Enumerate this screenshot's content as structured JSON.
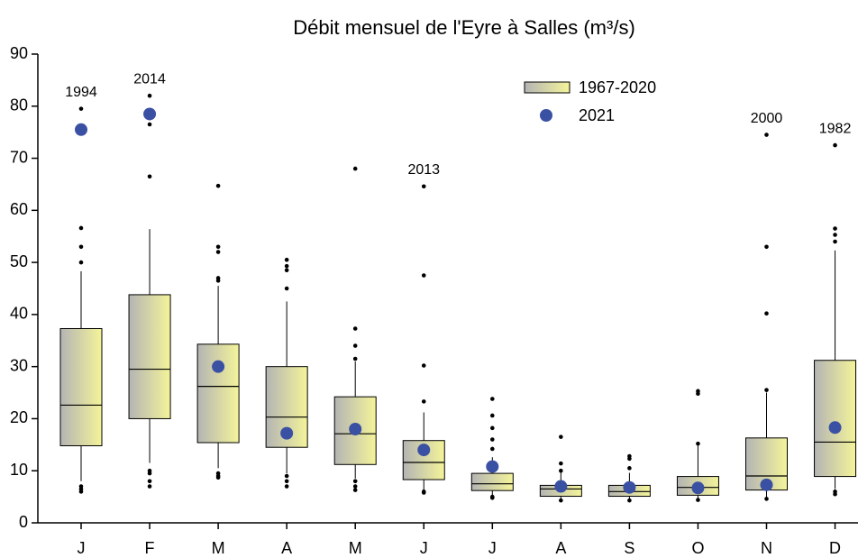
{
  "chart_data": {
    "type": "box",
    "title": "Débit mensuel de l'Eyre à Salles (m³/s)",
    "categories": [
      "J",
      "F",
      "M",
      "A",
      "M",
      "J",
      "J",
      "A",
      "S",
      "O",
      "N",
      "D"
    ],
    "ylim": [
      0,
      90
    ],
    "yticks": [
      0,
      10,
      20,
      30,
      40,
      50,
      60,
      70,
      80,
      90
    ],
    "series": [
      {
        "name": "1967-2020",
        "color": "#f4f49a",
        "color_dark": "#b4b4b4",
        "boxes": [
          {
            "whisker_low": 8,
            "q1": 14.8,
            "median": 22.6,
            "q3": 37.3,
            "whisker_high": 48.3,
            "outliers": [
              6,
              6.5,
              7,
              50,
              53,
              56.6,
              79.5
            ]
          },
          {
            "whisker_low": 11.5,
            "q1": 20,
            "median": 29.5,
            "q3": 43.8,
            "whisker_high": 56.4,
            "outliers": [
              7,
              8,
              9.5,
              10,
              66.5,
              76.5,
              82
            ]
          },
          {
            "whisker_low": 10.5,
            "q1": 15.4,
            "median": 26.2,
            "q3": 34.3,
            "whisker_high": 45.5,
            "outliers": [
              8.7,
              9,
              9.5,
              46.5,
              47,
              52,
              53,
              64.7
            ]
          },
          {
            "whisker_low": 9.5,
            "q1": 14.5,
            "median": 20.3,
            "q3": 30,
            "whisker_high": 42.5,
            "outliers": [
              7,
              8,
              9,
              45,
              48.5,
              49.3,
              50.5
            ]
          },
          {
            "whisker_low": 8.5,
            "q1": 11.2,
            "median": 17.1,
            "q3": 24.2,
            "whisker_high": 31,
            "outliers": [
              6.3,
              7,
              8,
              31.5,
              34,
              37.3,
              68
            ]
          },
          {
            "whisker_low": 6.2,
            "q1": 8.3,
            "median": 11.6,
            "q3": 15.8,
            "whisker_high": 21.2,
            "outliers": [
              5.8,
              6,
              23.3,
              30.2,
              47.5,
              64.6
            ]
          },
          {
            "whisker_low": 5.3,
            "q1": 6.2,
            "median": 7.5,
            "q3": 9.5,
            "whisker_high": 12.6,
            "outliers": [
              4.8,
              5,
              14.2,
              16,
              18.2,
              20.6,
              23.8
            ]
          },
          {
            "whisker_low": 4.5,
            "q1": 5.1,
            "median": 6.5,
            "q3": 7.2,
            "whisker_high": 9.7,
            "outliers": [
              4.3,
              10,
              11.4,
              16.5
            ]
          },
          {
            "whisker_low": 4.5,
            "q1": 5.1,
            "median": 6,
            "q3": 7.2,
            "whisker_high": 9.6,
            "outliers": [
              4.3,
              10.5,
              12.3,
              12.8
            ]
          },
          {
            "whisker_low": 4.6,
            "q1": 5.3,
            "median": 6.8,
            "q3": 8.9,
            "whisker_high": 14.8,
            "outliers": [
              4.4,
              15.2,
              24.8,
              25.3
            ]
          },
          {
            "whisker_low": 4.8,
            "q1": 6.3,
            "median": 9,
            "q3": 16.3,
            "whisker_high": 25,
            "outliers": [
              4.6,
              25.5,
              40.2,
              53,
              74.5
            ]
          },
          {
            "whisker_low": 6.5,
            "q1": 8.9,
            "median": 15.5,
            "q3": 31.2,
            "whisker_high": 52.3,
            "outliers": [
              5.5,
              6,
              54,
              55.3,
              56.5,
              72.5
            ]
          }
        ]
      },
      {
        "name": "2021",
        "color": "#3a50a3",
        "values": [
          75.5,
          78.5,
          30,
          17.2,
          18,
          14,
          10.8,
          7,
          6.8,
          6.7,
          7.3,
          18.3
        ]
      }
    ],
    "outlier_labels": [
      "1994",
      "2014",
      null,
      null,
      null,
      "2013",
      null,
      null,
      null,
      null,
      "2000",
      "1982"
    ]
  }
}
